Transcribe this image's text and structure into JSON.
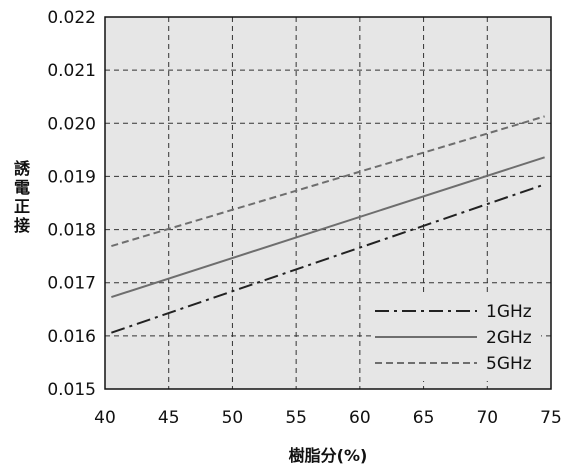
{
  "chart_data": {
    "type": "line",
    "xlabel": "樹脂分(%)",
    "ylabel": "誘電正接",
    "xlim": [
      40,
      75
    ],
    "ylim": [
      0.015,
      0.022
    ],
    "x_ticks": [
      "40",
      "45",
      "50",
      "55",
      "60",
      "65",
      "70",
      "75"
    ],
    "y_ticks": [
      "0.015",
      "0.016",
      "0.017",
      "0.018",
      "0.019",
      "0.020",
      "0.021",
      "0.022"
    ],
    "grid": true,
    "legend_position": "bottom-right",
    "plot_background": "#e6e6e6",
    "series": [
      {
        "name": "1GHz",
        "style": "dashdot",
        "color": "#222222",
        "x": [
          40.5,
          74.5
        ],
        "y": [
          0.01606,
          0.01885
        ]
      },
      {
        "name": "2GHz",
        "style": "solid",
        "color": "#6e6e6e",
        "x": [
          40.5,
          74.5
        ],
        "y": [
          0.01673,
          0.01936
        ]
      },
      {
        "name": "5GHz",
        "style": "dashed",
        "color": "#6e6e6e",
        "x": [
          40.5,
          74.5
        ],
        "y": [
          0.01769,
          0.02013
        ]
      }
    ]
  }
}
